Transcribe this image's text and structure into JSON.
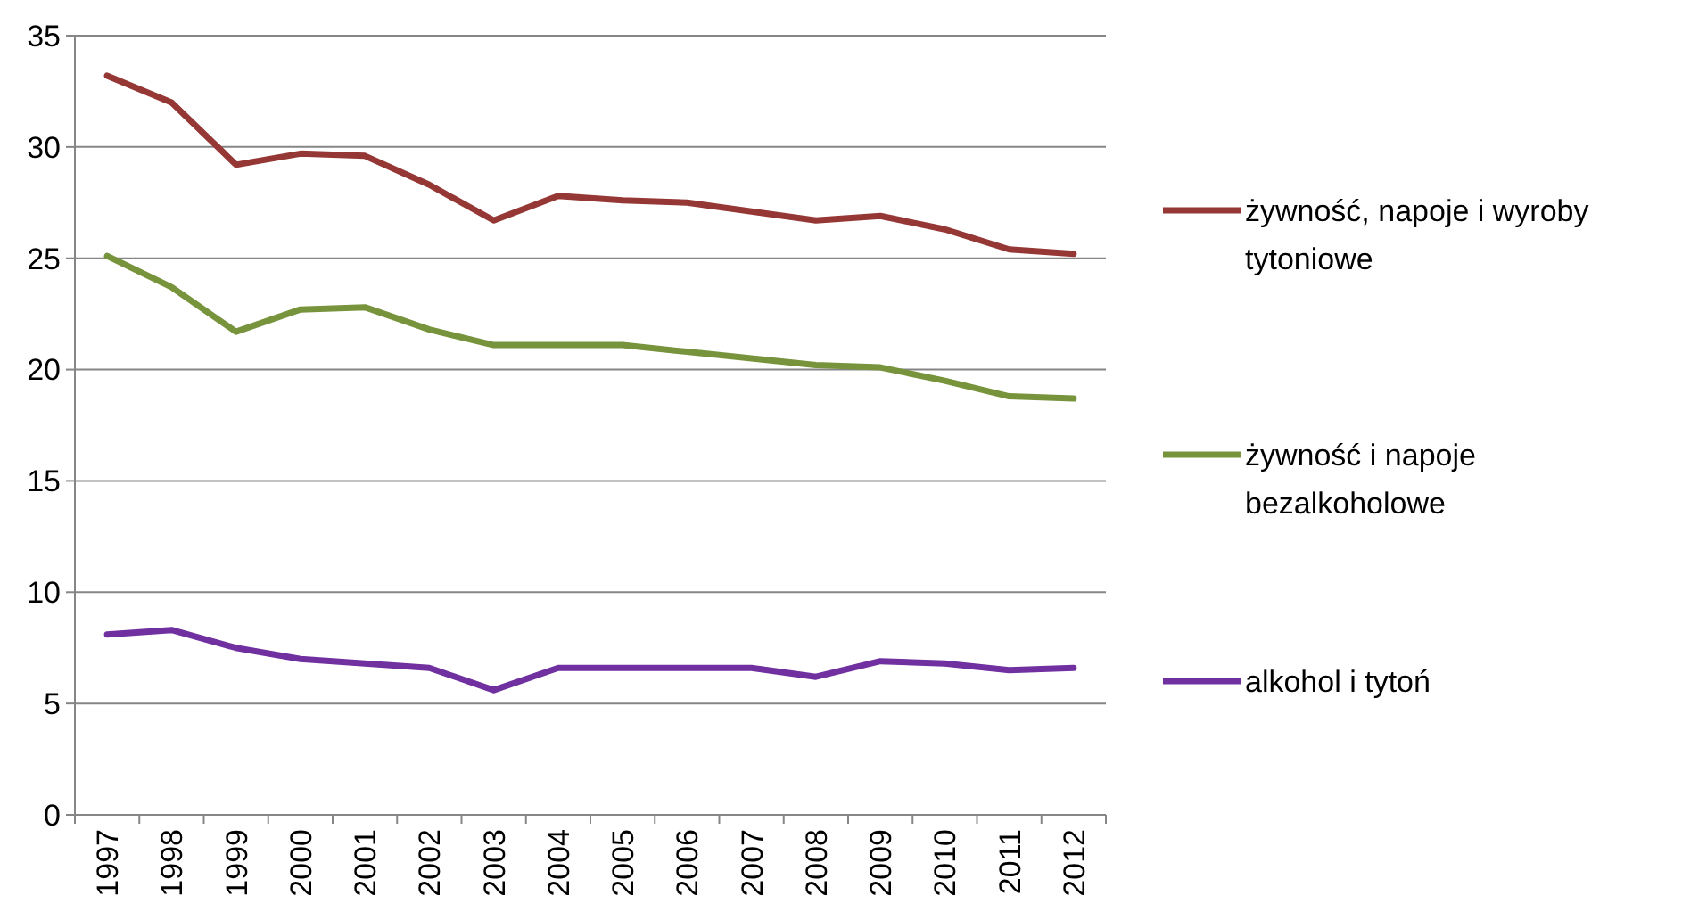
{
  "chart_data": {
    "type": "line",
    "categories": [
      "1997",
      "1998",
      "1999",
      "2000",
      "2001",
      "2002",
      "2003",
      "2004",
      "2005",
      "2006",
      "2007",
      "2008",
      "2009",
      "2010",
      "2011",
      "2012"
    ],
    "series": [
      {
        "name": "żywność, napoje i wyroby tytoniowe",
        "color": "#953735",
        "values": [
          33.2,
          32.0,
          29.2,
          29.7,
          29.6,
          28.3,
          26.7,
          27.8,
          27.6,
          27.5,
          27.1,
          26.7,
          26.9,
          26.3,
          25.4,
          25.2
        ]
      },
      {
        "name": "żywność i napoje bezalkoholowe",
        "color": "#77933c",
        "values": [
          25.1,
          23.7,
          21.7,
          22.7,
          22.8,
          21.8,
          21.1,
          21.1,
          21.1,
          20.8,
          20.5,
          20.2,
          20.1,
          19.5,
          18.8,
          18.7
        ]
      },
      {
        "name": "alkohol i tytoń",
        "color": "#7030a0",
        "values": [
          8.1,
          8.3,
          7.5,
          7.0,
          6.8,
          6.6,
          5.6,
          6.6,
          6.6,
          6.6,
          6.6,
          6.2,
          6.9,
          6.8,
          6.5,
          6.6
        ]
      }
    ],
    "ylim": [
      0,
      35
    ],
    "yticks": [
      0,
      5,
      10,
      15,
      20,
      25,
      30,
      35
    ],
    "grid": "y",
    "legend": "right",
    "marker": "none",
    "line_style": "solid"
  }
}
